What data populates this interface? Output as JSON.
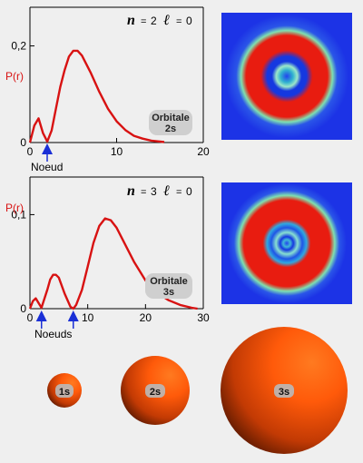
{
  "colors": {
    "background": "#efefef",
    "curve": "#d81212",
    "arrow": "#1a2fd6",
    "density_outer": "#1c33e6",
    "density_ring": "#ee1f10",
    "density_glow": "#7fe0b0",
    "sphere_light": "#ff6a1a",
    "sphere_dark": "#3a0e00"
  },
  "plots": [
    {
      "id": "2s",
      "quantum_numbers": {
        "n_symbol": "n",
        "n_value": "2",
        "l_symbol": "ℓ",
        "l_value": "0"
      },
      "ylabel": "P(r)",
      "node_label": "Noeud",
      "orbital_label_line1": "Orbitale",
      "orbital_label_line2": "2s",
      "x_ticks": [
        "0",
        "10",
        "20"
      ],
      "y_ticks": [
        "0",
        "0,2"
      ],
      "chart_data": {
        "type": "line",
        "title": "",
        "xlabel": "",
        "ylabel": "P(r)",
        "xlim": [
          0,
          20
        ],
        "ylim": [
          0,
          0.28
        ],
        "x": [
          0,
          0.5,
          1,
          1.5,
          2,
          2.5,
          3,
          3.5,
          4,
          4.5,
          5,
          5.5,
          6,
          7,
          8,
          9,
          10,
          11,
          12,
          13,
          14,
          15,
          15.5
        ],
        "values": [
          0,
          0.035,
          0.05,
          0.02,
          0.002,
          0.025,
          0.07,
          0.115,
          0.15,
          0.178,
          0.19,
          0.19,
          0.18,
          0.145,
          0.105,
          0.07,
          0.044,
          0.026,
          0.014,
          0.008,
          0.004,
          0.002,
          0.001
        ],
        "nodes_r": [
          2
        ]
      }
    },
    {
      "id": "3s",
      "quantum_numbers": {
        "n_symbol": "n",
        "n_value": "3",
        "l_symbol": "ℓ",
        "l_value": "0"
      },
      "ylabel": "P(r)",
      "node_label": "Noeuds",
      "orbital_label_line1": "Orbitale",
      "orbital_label_line2": "3s",
      "x_ticks": [
        "0",
        "10",
        "20",
        "30"
      ],
      "y_ticks": [
        "0",
        "0,1"
      ],
      "chart_data": {
        "type": "line",
        "title": "",
        "xlabel": "",
        "ylabel": "P(r)",
        "xlim": [
          0,
          30
        ],
        "ylim": [
          0,
          0.14
        ],
        "x": [
          0,
          0.5,
          1,
          1.5,
          2,
          3,
          3.5,
          4,
          4.5,
          5,
          6,
          7,
          7.5,
          8,
          9,
          10,
          11,
          12,
          13,
          14,
          15,
          16,
          18,
          20,
          22,
          24,
          26,
          28,
          29
        ],
        "values": [
          0,
          0.008,
          0.011,
          0.006,
          0.001,
          0.02,
          0.031,
          0.036,
          0.036,
          0.033,
          0.016,
          0.002,
          0.0,
          0.004,
          0.02,
          0.045,
          0.07,
          0.088,
          0.096,
          0.094,
          0.086,
          0.074,
          0.05,
          0.03,
          0.017,
          0.009,
          0.004,
          0.001,
          0.0
        ],
        "nodes_r": [
          2,
          7.5
        ]
      }
    }
  ],
  "spheres": [
    {
      "label": "1s",
      "relative_size": 1
    },
    {
      "label": "2s",
      "relative_size": 2.05
    },
    {
      "label": "3s",
      "relative_size": 3.75
    }
  ]
}
